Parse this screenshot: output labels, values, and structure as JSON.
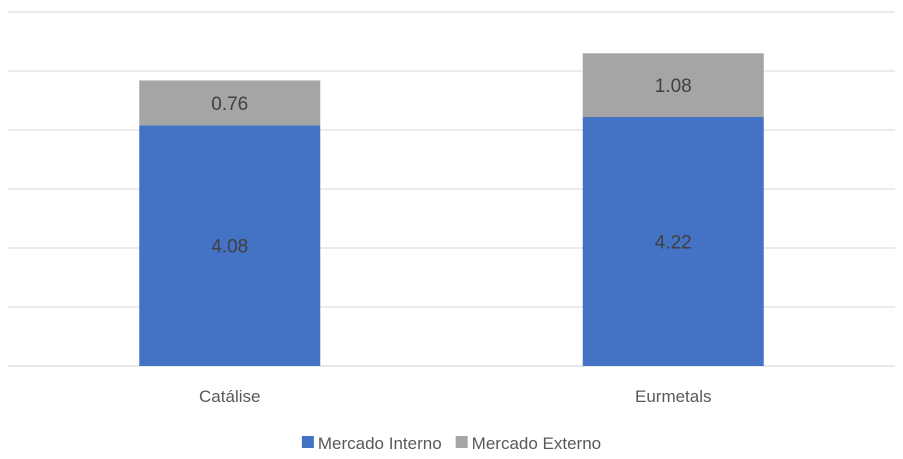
{
  "chart_data": {
    "type": "bar",
    "stacked": true,
    "categories": [
      "Catálise",
      "Eurmetals"
    ],
    "series": [
      {
        "name": "Mercado Interno",
        "values": [
          4.08,
          4.22
        ],
        "color": "#4472C4"
      },
      {
        "name": "Mercado Externo",
        "values": [
          0.76,
          1.08
        ],
        "color": "#A5A5A5"
      }
    ],
    "ylim": [
      0,
      6
    ],
    "grid": true,
    "legend": "bottom",
    "data_labels": true
  }
}
